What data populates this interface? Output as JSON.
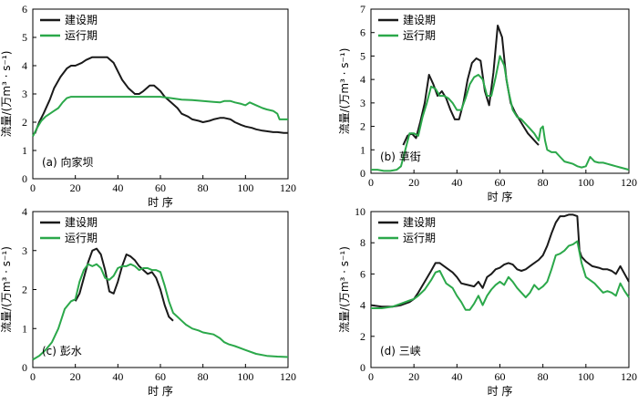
{
  "colors": {
    "construction": "#1a1a1a",
    "operation": "#2ba84a"
  },
  "chart_data": [
    {
      "type": "line",
      "panel_label": "(a) 向家坝",
      "xlabel": "时 序",
      "ylabel": "流量/(万m³ · s⁻¹)",
      "xlim": [
        0,
        120
      ],
      "ylim": [
        0,
        6
      ],
      "xticks": [
        0,
        20,
        40,
        60,
        80,
        100,
        120
      ],
      "yticks": [
        0,
        1,
        2,
        3,
        4,
        5,
        6
      ],
      "legend": "top-left",
      "series": [
        {
          "name": "建设期",
          "color_key": "construction",
          "x": [
            1,
            3,
            5,
            8,
            10,
            13,
            16,
            18,
            20,
            23,
            25,
            28,
            30,
            33,
            35,
            38,
            40,
            42,
            45,
            48,
            50,
            52,
            55,
            57,
            60,
            62,
            65,
            68,
            70,
            73,
            75,
            78,
            80,
            83,
            85,
            88,
            90,
            93,
            95,
            98,
            100,
            103,
            105,
            108,
            110,
            113,
            115,
            118,
            120
          ],
          "y": [
            1.6,
            2.0,
            2.3,
            2.8,
            3.2,
            3.6,
            3.9,
            4.0,
            4.0,
            4.1,
            4.2,
            4.3,
            4.3,
            4.3,
            4.3,
            4.1,
            3.8,
            3.5,
            3.2,
            3.0,
            3.0,
            3.1,
            3.3,
            3.3,
            3.1,
            2.9,
            2.7,
            2.5,
            2.3,
            2.2,
            2.1,
            2.05,
            2.0,
            2.05,
            2.1,
            2.15,
            2.15,
            2.1,
            2.0,
            1.9,
            1.85,
            1.8,
            1.75,
            1.7,
            1.68,
            1.65,
            1.65,
            1.62,
            1.62
          ]
        },
        {
          "name": "运行期",
          "color_key": "operation",
          "x": [
            0,
            2,
            4,
            6,
            8,
            10,
            12,
            14,
            16,
            18,
            20,
            25,
            30,
            35,
            40,
            45,
            50,
            55,
            60,
            65,
            70,
            75,
            80,
            85,
            88,
            90,
            93,
            95,
            98,
            100,
            102,
            105,
            108,
            110,
            113,
            115,
            116,
            118,
            120
          ],
          "y": [
            1.5,
            1.8,
            2.05,
            2.2,
            2.3,
            2.4,
            2.5,
            2.7,
            2.85,
            2.9,
            2.9,
            2.9,
            2.9,
            2.9,
            2.9,
            2.9,
            2.9,
            2.9,
            2.9,
            2.85,
            2.8,
            2.78,
            2.75,
            2.72,
            2.7,
            2.75,
            2.75,
            2.7,
            2.65,
            2.6,
            2.7,
            2.6,
            2.5,
            2.45,
            2.4,
            2.3,
            2.1,
            2.1,
            2.1
          ]
        }
      ]
    },
    {
      "type": "line",
      "panel_label": "(b) 草街",
      "xlabel": "时 序",
      "ylabel": "流量/(万m³ · s⁻¹)",
      "xlim": [
        0,
        120
      ],
      "ylim": [
        0,
        7
      ],
      "xticks": [
        0,
        20,
        40,
        60,
        80,
        100,
        120
      ],
      "yticks": [
        0,
        1,
        2,
        3,
        4,
        5,
        6,
        7
      ],
      "legend": "top-left",
      "series": [
        {
          "name": "建设期",
          "color_key": "construction",
          "x": [
            15,
            17,
            19,
            21,
            23,
            25,
            27,
            29,
            31,
            33,
            35,
            37,
            39,
            41,
            43,
            45,
            47,
            49,
            51,
            53,
            55,
            57,
            59,
            61,
            63,
            65,
            67,
            69,
            71,
            73,
            75,
            77,
            78
          ],
          "y": [
            1.2,
            1.6,
            1.7,
            1.5,
            2.2,
            3.0,
            4.2,
            3.8,
            3.3,
            3.5,
            3.2,
            2.7,
            2.3,
            2.3,
            3.0,
            4.0,
            4.7,
            4.9,
            4.8,
            3.5,
            2.9,
            4.3,
            6.3,
            5.8,
            4.0,
            3.0,
            2.6,
            2.3,
            2.0,
            1.7,
            1.5,
            1.3,
            1.2
          ]
        },
        {
          "name": "运行期",
          "color_key": "operation",
          "x": [
            0,
            3,
            6,
            9,
            12,
            14,
            16,
            18,
            20,
            22,
            24,
            26,
            28,
            30,
            32,
            34,
            36,
            38,
            40,
            42,
            44,
            46,
            48,
            50,
            52,
            54,
            56,
            58,
            60,
            62,
            64,
            66,
            68,
            70,
            72,
            74,
            76,
            78,
            79,
            80,
            81,
            82,
            84,
            86,
            88,
            90,
            92,
            94,
            96,
            98,
            100,
            102,
            104,
            106,
            108,
            110,
            112,
            114,
            116,
            118,
            120
          ],
          "y": [
            0.15,
            0.15,
            0.1,
            0.1,
            0.15,
            0.3,
            1.0,
            1.7,
            1.7,
            1.6,
            2.4,
            3.0,
            3.7,
            3.6,
            3.3,
            3.3,
            3.2,
            3.0,
            2.7,
            2.7,
            3.2,
            3.8,
            4.1,
            4.2,
            4.0,
            3.3,
            3.3,
            4.1,
            5.0,
            4.6,
            3.5,
            2.7,
            2.4,
            2.3,
            2.1,
            1.9,
            1.7,
            1.4,
            1.9,
            2.0,
            1.4,
            1.0,
            0.9,
            0.9,
            0.7,
            0.5,
            0.45,
            0.4,
            0.3,
            0.25,
            0.3,
            0.7,
            0.5,
            0.45,
            0.45,
            0.4,
            0.35,
            0.3,
            0.25,
            0.2,
            0.15
          ]
        }
      ]
    },
    {
      "type": "line",
      "panel_label": "(c) 彭水",
      "xlabel": "时 序",
      "ylabel": "流量/(万m³ · s⁻¹)",
      "xlim": [
        0,
        120
      ],
      "ylim": [
        0,
        4
      ],
      "xticks": [
        0,
        20,
        40,
        60,
        80,
        100,
        120
      ],
      "yticks": [
        0,
        1,
        2,
        3,
        4
      ],
      "legend": "top-left",
      "series": [
        {
          "name": "建设期",
          "color_key": "construction",
          "x": [
            20,
            22,
            24,
            26,
            28,
            30,
            32,
            34,
            36,
            38,
            40,
            42,
            44,
            46,
            48,
            50,
            52,
            54,
            56,
            58,
            60,
            62,
            64,
            66
          ],
          "y": [
            1.7,
            1.9,
            2.3,
            2.7,
            3.0,
            3.05,
            2.9,
            2.5,
            1.95,
            1.9,
            2.2,
            2.6,
            2.9,
            2.85,
            2.75,
            2.6,
            2.5,
            2.4,
            2.45,
            2.3,
            2.0,
            1.6,
            1.3,
            1.2
          ]
        },
        {
          "name": "运行期",
          "color_key": "operation",
          "x": [
            0,
            3,
            6,
            9,
            12,
            15,
            18,
            20,
            22,
            24,
            26,
            28,
            30,
            32,
            34,
            36,
            38,
            40,
            42,
            44,
            46,
            48,
            50,
            52,
            54,
            56,
            58,
            60,
            62,
            64,
            66,
            68,
            70,
            72,
            75,
            78,
            80,
            85,
            88,
            90,
            92,
            95,
            100,
            105,
            110,
            115,
            120
          ],
          "y": [
            0.2,
            0.3,
            0.45,
            0.65,
            1.0,
            1.5,
            1.7,
            1.75,
            2.2,
            2.5,
            2.65,
            2.6,
            2.65,
            2.55,
            2.3,
            2.25,
            2.35,
            2.55,
            2.6,
            2.6,
            2.65,
            2.6,
            2.5,
            2.55,
            2.55,
            2.5,
            2.5,
            2.45,
            2.1,
            1.7,
            1.4,
            1.3,
            1.2,
            1.1,
            1.0,
            0.95,
            0.9,
            0.85,
            0.75,
            0.65,
            0.6,
            0.55,
            0.45,
            0.35,
            0.3,
            0.28,
            0.27
          ]
        }
      ]
    },
    {
      "type": "line",
      "panel_label": "(d) 三峡",
      "xlabel": "时 序",
      "ylabel": "流量/(万m³ · s⁻¹)",
      "xlim": [
        0,
        120
      ],
      "ylim": [
        0,
        10
      ],
      "xticks": [
        0,
        20,
        40,
        60,
        80,
        100,
        120
      ],
      "yticks": [
        0,
        2,
        4,
        6,
        8,
        10
      ],
      "legend": "top-left",
      "series": [
        {
          "name": "建设期",
          "color_key": "construction",
          "x": [
            0,
            5,
            10,
            14,
            18,
            20,
            22,
            25,
            28,
            30,
            32,
            35,
            38,
            40,
            42,
            45,
            48,
            50,
            52,
            54,
            56,
            58,
            60,
            62,
            64,
            66,
            68,
            70,
            72,
            75,
            78,
            80,
            82,
            84,
            86,
            88,
            90,
            92,
            94,
            96,
            97,
            98,
            100,
            103,
            106,
            108,
            110,
            112,
            114,
            116,
            118,
            120
          ],
          "y": [
            4.0,
            3.9,
            3.9,
            4.0,
            4.2,
            4.4,
            4.8,
            5.5,
            6.2,
            6.7,
            6.7,
            6.4,
            6.1,
            5.8,
            5.4,
            5.3,
            5.2,
            5.5,
            5.1,
            5.8,
            6.0,
            6.3,
            6.4,
            6.6,
            6.7,
            6.6,
            6.3,
            6.2,
            6.3,
            6.6,
            6.9,
            7.2,
            7.8,
            8.6,
            9.3,
            9.7,
            9.7,
            9.8,
            9.8,
            9.7,
            7.5,
            7.1,
            6.8,
            6.5,
            6.4,
            6.3,
            6.3,
            6.2,
            6.0,
            6.5,
            6.0,
            5.5
          ]
        },
        {
          "name": "运行期",
          "color_key": "operation",
          "x": [
            0,
            5,
            10,
            14,
            18,
            20,
            22,
            25,
            28,
            30,
            32,
            35,
            38,
            40,
            42,
            44,
            46,
            48,
            50,
            52,
            54,
            56,
            58,
            60,
            62,
            64,
            66,
            68,
            70,
            72,
            74,
            76,
            78,
            80,
            82,
            84,
            86,
            88,
            90,
            92,
            94,
            96,
            98,
            100,
            102,
            104,
            106,
            108,
            110,
            112,
            114,
            116,
            118,
            120
          ],
          "y": [
            3.8,
            3.8,
            3.9,
            4.1,
            4.3,
            4.4,
            4.6,
            5.0,
            5.6,
            6.1,
            6.2,
            5.4,
            5.1,
            4.6,
            4.2,
            3.7,
            3.7,
            4.1,
            4.6,
            4.0,
            4.6,
            5.0,
            5.3,
            5.5,
            5.3,
            5.8,
            5.5,
            5.1,
            4.8,
            4.5,
            4.8,
            5.3,
            5.0,
            5.2,
            5.5,
            6.3,
            7.2,
            7.3,
            7.5,
            7.8,
            7.9,
            8.1,
            6.7,
            5.8,
            5.6,
            5.4,
            5.1,
            4.8,
            4.9,
            4.8,
            4.6,
            5.4,
            4.9,
            4.5
          ]
        }
      ]
    }
  ]
}
